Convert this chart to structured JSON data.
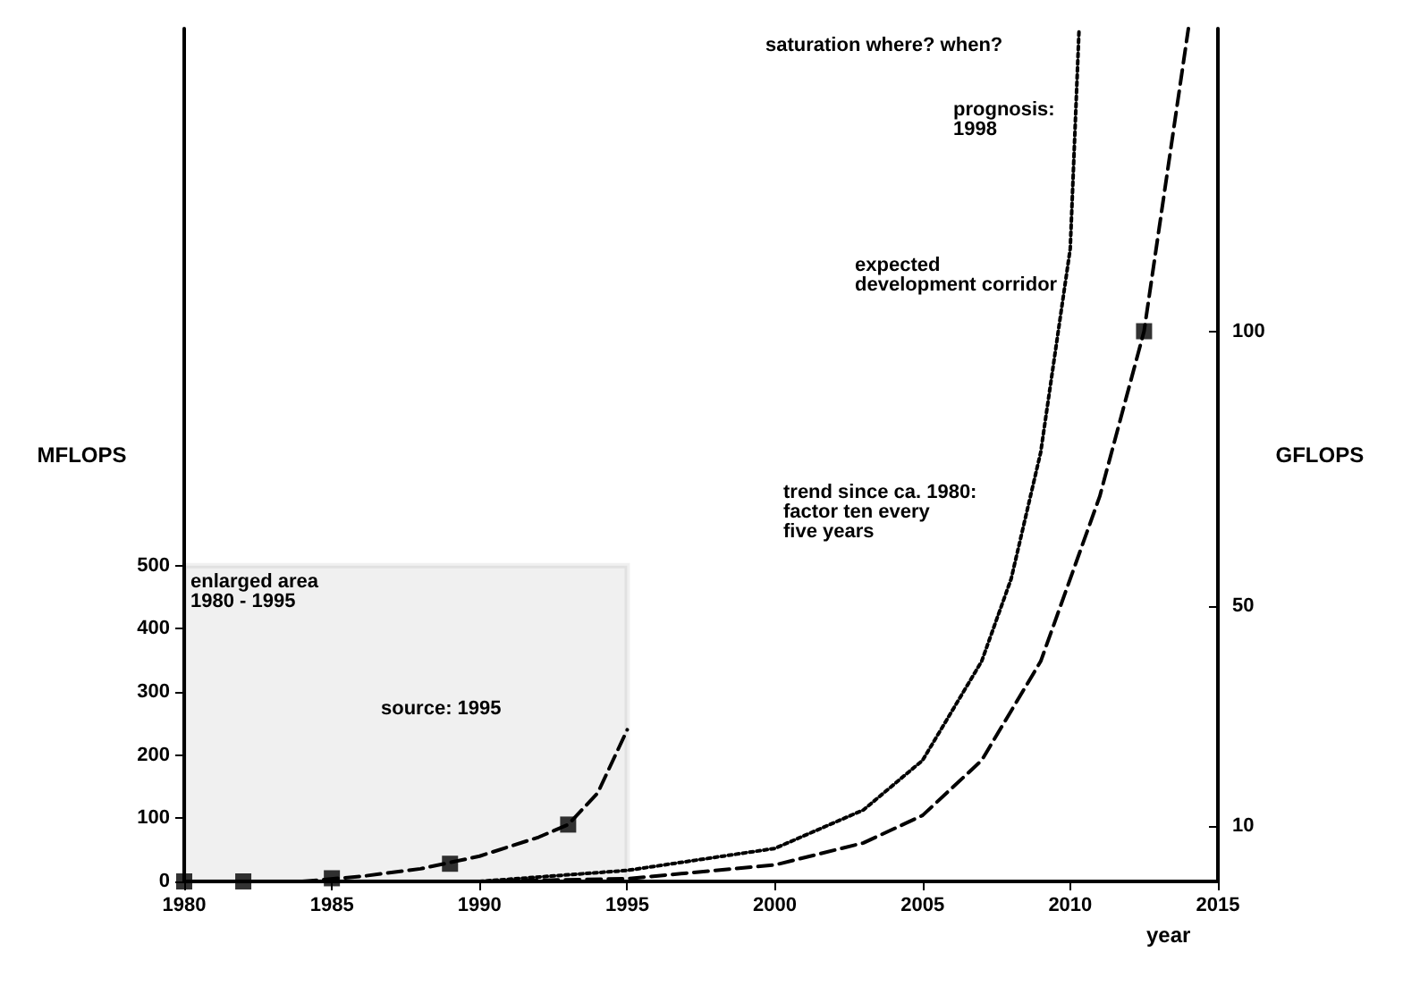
{
  "chart_data": {
    "type": "line",
    "xlabel": "year",
    "ylabel": "MFLOPS",
    "y2label": "GFLOPS",
    "xlim": [
      1980,
      2015
    ],
    "xticks": [
      1980,
      1985,
      1990,
      1995,
      2000,
      2005,
      2010,
      2015
    ],
    "ylim": [
      0,
      1350
    ],
    "yticks": [
      0,
      100,
      200,
      300,
      400,
      500
    ],
    "y2lim": [
      0,
      155
    ],
    "y2ticks": [
      10,
      50,
      100
    ],
    "grid": false,
    "series": [
      {
        "axis": "y",
        "color": "#000000",
        "line_style": "dashed",
        "marker": "none",
        "x": [
          1984,
          1986,
          1988,
          1990,
          1992,
          1993,
          1994,
          1995
        ],
        "values": [
          0,
          8,
          20,
          40,
          70,
          90,
          140,
          240
        ]
      },
      {
        "type": "scatter",
        "axis": "y",
        "color": "#000000",
        "marker": "square",
        "x": [
          1980,
          1982,
          1985,
          1989,
          1993
        ],
        "values": [
          0,
          0,
          5,
          28,
          90
        ]
      },
      {
        "axis": "y2",
        "color": "#000000",
        "line_style": "dashed",
        "marker": "none",
        "x": [
          1990,
          1995,
          2000,
          2003,
          2005,
          2007,
          2009,
          2011,
          2012.5,
          2014
        ],
        "values": [
          0,
          0.5,
          3,
          7,
          12,
          22,
          40,
          70,
          100,
          155
        ]
      },
      {
        "axis": "y2",
        "color": "#000000",
        "line_style": "dotted",
        "marker": "none",
        "x": [
          1990,
          1995,
          2000,
          2003,
          2005,
          2007,
          2008,
          2009,
          2010,
          2010.3
        ],
        "values": [
          0,
          2,
          6,
          13,
          22,
          40,
          55,
          78,
          115,
          155
        ]
      },
      {
        "type": "scatter",
        "axis": "y2",
        "color": "#000000",
        "marker": "square",
        "x": [
          2012.5
        ],
        "values": [
          100
        ]
      }
    ],
    "bands": [
      {
        "axis": "x",
        "from": 1980,
        "to": 1995,
        "label": "enlarged area\n1980 - 1995",
        "color": "#000000"
      }
    ],
    "annotations": [
      "saturation where? when?",
      "prognosis:\n1998",
      "expected\ndevelopment corridor",
      "trend since ca. 1980:\nfactor ten every\nfive years",
      "source: 1995"
    ]
  }
}
